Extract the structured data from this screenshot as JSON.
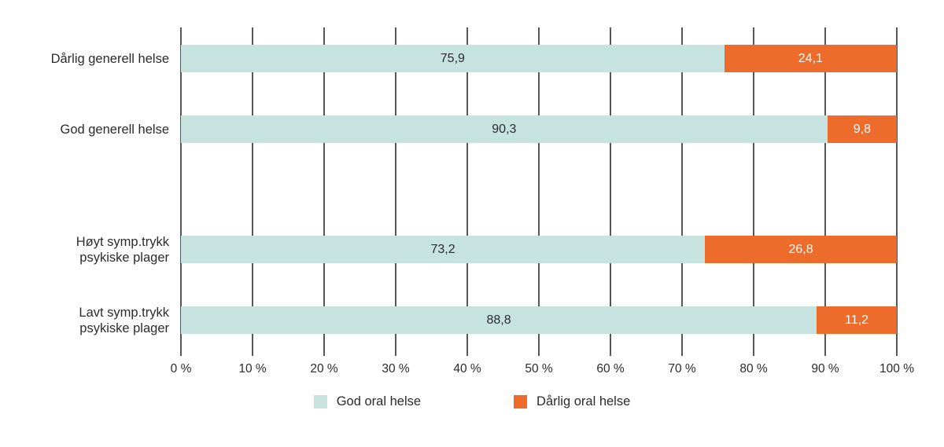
{
  "figure": {
    "background_color": "#ffffff",
    "text_color": "#2b2b2b"
  },
  "chart_data": {
    "type": "bar",
    "orientation": "horizontal",
    "stacked": true,
    "unit": "%",
    "categories": [
      "Dårlig generell helse",
      "God generell helse",
      "Høyt symp.trykk\npsykiske plager",
      "Lavt symp.trykk\npsykiske plager"
    ],
    "series": [
      {
        "name": "God oral helse",
        "color": "#c7e3e0",
        "value_text_color": "#2b2b2b",
        "values": [
          75.9,
          90.3,
          73.2,
          88.8
        ],
        "value_labels": [
          "75,9",
          "90,3",
          "73,2",
          "88,8"
        ]
      },
      {
        "name": "Dårlig oral helse",
        "color": "#ed6c2c",
        "value_text_color": "#ffffff",
        "values": [
          24.1,
          9.8,
          26.8,
          11.2
        ],
        "value_labels": [
          "24,1",
          "9,8",
          "26,8",
          "11,2"
        ]
      }
    ],
    "x_ticks": [
      "0 %",
      "10 %",
      "20 %",
      "30 %",
      "40 %",
      "50 %",
      "60 %",
      "70 %",
      "80 %",
      "90 %",
      "100 %"
    ],
    "xlim": [
      0,
      100
    ],
    "grid": "vertical",
    "gridline_color": "#55565a",
    "legend_position": "bottom",
    "legend": [
      "God oral helse",
      "Dårlig oral helse"
    ]
  }
}
